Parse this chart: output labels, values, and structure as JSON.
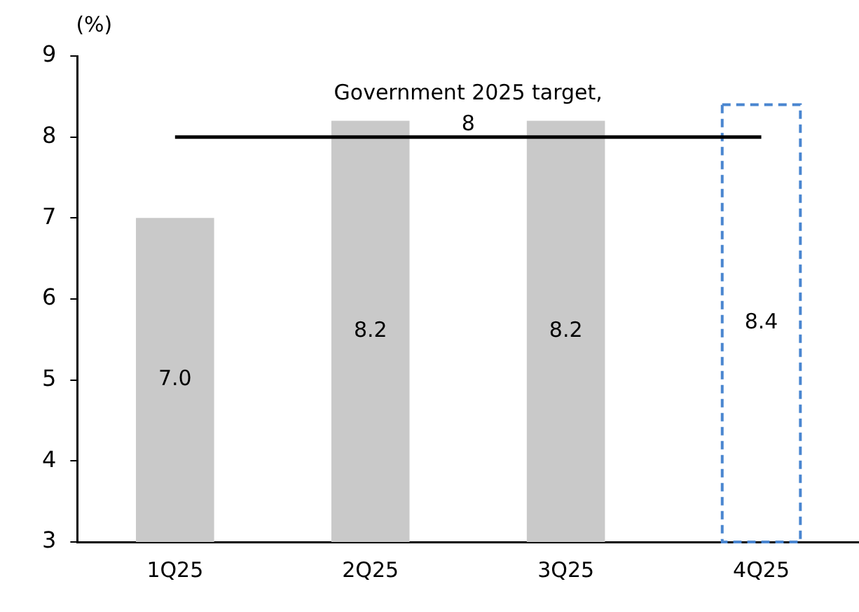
{
  "chart_data": {
    "type": "bar",
    "ylabel": "(%)",
    "categories": [
      "1Q25",
      "2Q25",
      "3Q25",
      "4Q25"
    ],
    "series": [
      {
        "color": "#c9c9c9",
        "values": [
          7.0,
          8.2,
          8.2,
          null
        ],
        "value_labels": [
          "7.0",
          "8.2",
          "8.2",
          null
        ]
      },
      {
        "color": "#4a86d0",
        "line_style": "dashed",
        "values": [
          null,
          null,
          null,
          8.4
        ],
        "value_labels": [
          null,
          null,
          null,
          "8.4"
        ]
      }
    ],
    "ylim": [
      3,
      9
    ],
    "yticks": [
      3,
      4,
      5,
      6,
      7,
      8,
      9
    ],
    "grid": false,
    "legend": false,
    "ref_lines": [
      {
        "axis": "y",
        "value": 8,
        "label": "Government 2025 target,\n8",
        "color": "#000000"
      }
    ]
  }
}
